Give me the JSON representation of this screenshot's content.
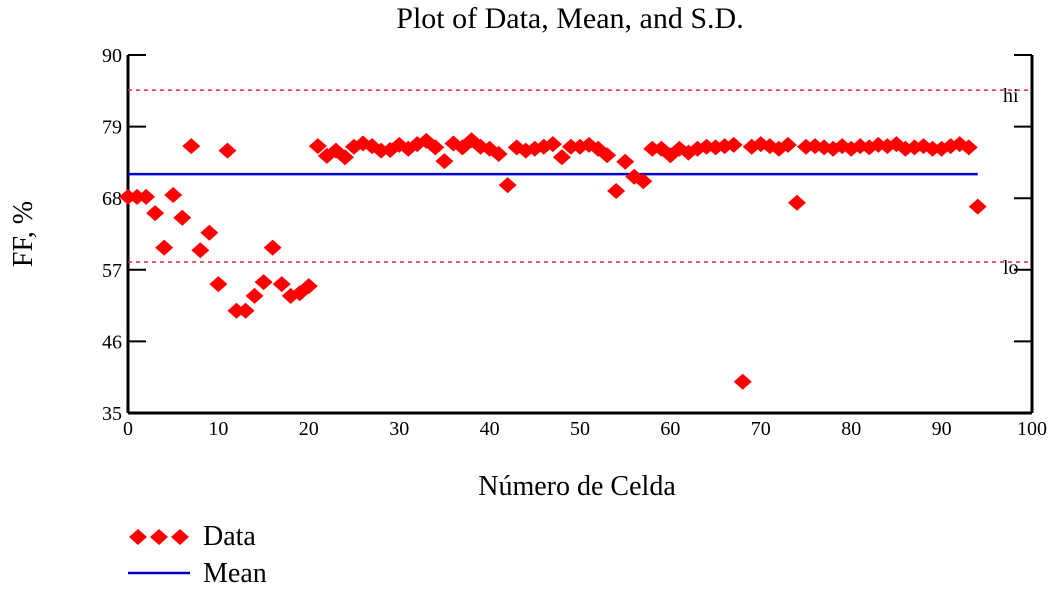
{
  "chart_data": {
    "type": "scatter",
    "title": "Plot of Data, Mean, and S.D.",
    "xlabel": "Número de Celda",
    "ylabel": "FF, %",
    "xlim": [
      0,
      100
    ],
    "ylim": [
      35,
      90
    ],
    "xticks": [
      "0",
      "10",
      "20",
      "30",
      "40",
      "50",
      "60",
      "70",
      "80",
      "90",
      "100"
    ],
    "yticks": [
      "35",
      "46",
      "57",
      "68",
      "79",
      "90"
    ],
    "ytick_values": [
      35,
      46,
      57,
      68,
      79,
      90
    ],
    "xtick_values": [
      0,
      10,
      20,
      30,
      40,
      50,
      60,
      70,
      80,
      90,
      100
    ],
    "series": [
      {
        "name": "Data",
        "color": "#ff0000",
        "marker": "diamond",
        "x": [
          0,
          1,
          2,
          3,
          4,
          5,
          6,
          7,
          8,
          9,
          10,
          11,
          12,
          13,
          14,
          15,
          16,
          17,
          18,
          19,
          20,
          21,
          22,
          23,
          24,
          25,
          26,
          27,
          28,
          29,
          30,
          31,
          32,
          33,
          34,
          35,
          36,
          37,
          38,
          39,
          40,
          41,
          42,
          43,
          44,
          45,
          46,
          47,
          48,
          49,
          50,
          51,
          52,
          53,
          54,
          55,
          56,
          57,
          58,
          59,
          60,
          61,
          62,
          63,
          64,
          65,
          66,
          67,
          68,
          69,
          70,
          71,
          72,
          73,
          74,
          75,
          76,
          77,
          78,
          79,
          80,
          81,
          82,
          83,
          84,
          85,
          86,
          87,
          88,
          89,
          90,
          91,
          92,
          93,
          94
        ],
        "values": [
          68.2,
          68.2,
          68.2,
          65.7,
          60.4,
          68.5,
          65.0,
          76.0,
          60.0,
          62.7,
          54.8,
          75.3,
          50.7,
          50.7,
          53.0,
          55.1,
          60.4,
          54.8,
          53.0,
          53.4,
          54.5,
          76.0,
          74.5,
          75.3,
          74.3,
          75.9,
          76.4,
          76.0,
          75.3,
          75.4,
          76.2,
          75.6,
          76.3,
          76.8,
          75.8,
          73.7,
          76.4,
          75.8,
          76.9,
          75.9,
          75.6,
          74.8,
          70.0,
          75.8,
          75.3,
          75.6,
          75.9,
          76.3,
          74.3,
          75.9,
          75.9,
          76.2,
          75.6,
          74.6,
          69.1,
          73.6,
          71.3,
          70.6,
          75.6,
          75.6,
          74.6,
          75.6,
          75.0,
          75.6,
          75.9,
          75.8,
          76.0,
          76.2,
          39.8,
          75.9,
          76.3,
          76.0,
          75.6,
          76.2,
          67.3,
          75.9,
          76.0,
          75.8,
          75.6,
          76.0,
          75.6,
          76.0,
          75.8,
          76.2,
          76.0,
          76.3,
          75.6,
          75.8,
          76.0,
          75.6,
          75.6,
          76.0,
          76.3,
          75.8,
          66.7
        ]
      },
      {
        "name": "Mean",
        "color": "#0000cc",
        "type": "hline",
        "value": 71.7,
        "x_range": [
          0,
          94
        ]
      }
    ],
    "reference_lines": [
      {
        "label": "hi",
        "value": 84.6,
        "color": "#cc3333",
        "style": "dashed"
      },
      {
        "label": "lo",
        "value": 58.2,
        "color": "#cc3333",
        "style": "dashed"
      }
    ],
    "legend": {
      "placement": "bottom-left",
      "entries": [
        "Data",
        "Mean"
      ]
    },
    "grid": false
  }
}
